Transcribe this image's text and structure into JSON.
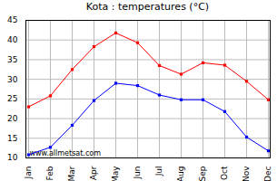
{
  "chart_data": {
    "type": "line",
    "title": "Kota : temperatures (°C)",
    "categories": [
      "Jan",
      "Feb",
      "Mar",
      "Apr",
      "May",
      "Jun",
      "Jul",
      "Aug",
      "Sep",
      "Oct",
      "Nov",
      "Dec"
    ],
    "series": [
      {
        "color": "#ff0000",
        "marker": "square",
        "values": [
          23,
          25.8,
          32.5,
          38.3,
          41.8,
          39.3,
          33.5,
          31.3,
          34.2,
          33.6,
          29.5,
          24.8
        ]
      },
      {
        "color": "#0000ff",
        "marker": "square",
        "values": [
          10.8,
          12.7,
          18.3,
          24.6,
          29,
          28.4,
          26,
          24.8,
          24.8,
          21.8,
          15.3,
          11.8
        ]
      }
    ],
    "ylim": [
      10,
      45
    ],
    "yticks": [
      10,
      15,
      20,
      25,
      30,
      35,
      40,
      45
    ],
    "grid": true,
    "annotations": [
      "www.allmetsat.com"
    ]
  }
}
